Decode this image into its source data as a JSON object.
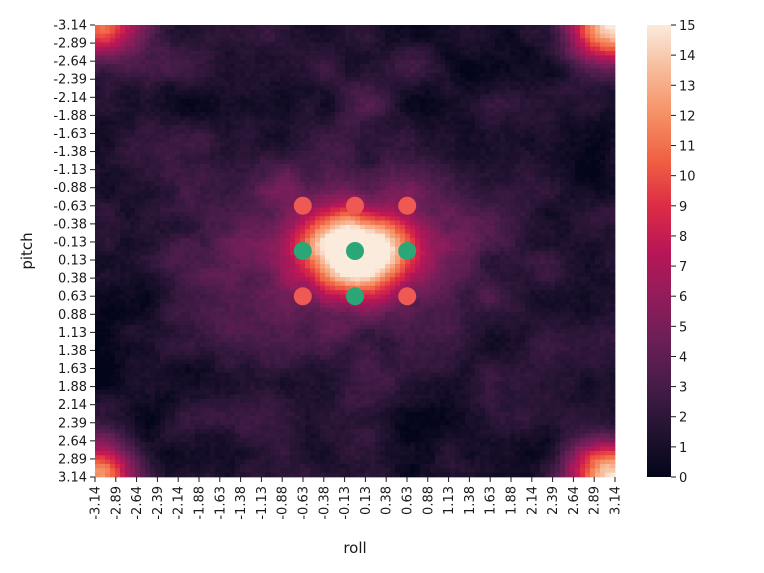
{
  "chart_data": {
    "type": "heatmap",
    "xlabel": "roll",
    "ylabel": "pitch",
    "x_ticks": [
      "-3.14",
      "-2.89",
      "-2.64",
      "-2.39",
      "-2.14",
      "-1.88",
      "-1.63",
      "-1.38",
      "-1.13",
      "-0.88",
      "-0.63",
      "-0.38",
      "-0.13",
      "0.13",
      "0.38",
      "0.63",
      "0.88",
      "1.13",
      "1.38",
      "1.63",
      "1.88",
      "2.14",
      "2.39",
      "2.64",
      "2.89",
      "3.14"
    ],
    "y_ticks": [
      "-3.14",
      "-2.89",
      "-2.64",
      "-2.39",
      "-2.14",
      "-1.88",
      "-1.63",
      "-1.38",
      "-1.13",
      "-0.88",
      "-0.63",
      "-0.38",
      "-0.13",
      "0.13",
      "0.38",
      "0.63",
      "0.88",
      "1.13",
      "1.38",
      "1.63",
      "1.88",
      "2.14",
      "2.39",
      "2.64",
      "2.89",
      "3.14"
    ],
    "x_range": [
      -3.14,
      3.14
    ],
    "y_range": [
      -3.14,
      3.14
    ],
    "y_direction": "downward",
    "colorbar": {
      "range": [
        0,
        15
      ],
      "ticks": [
        "0",
        "1",
        "2",
        "3",
        "4",
        "5",
        "6",
        "7",
        "8",
        "9",
        "10",
        "11",
        "12",
        "13",
        "14",
        "15"
      ],
      "colormap": "rocket"
    },
    "density_peaks": [
      {
        "roll": 0.0,
        "pitch": 0.0,
        "value": 15
      },
      {
        "roll": -3.14,
        "pitch": -3.14,
        "value": 11
      },
      {
        "roll": 3.14,
        "pitch": -3.14,
        "value": 13
      },
      {
        "roll": -3.14,
        "pitch": 3.14,
        "value": 11
      },
      {
        "roll": 3.14,
        "pitch": 3.14,
        "value": 13
      }
    ],
    "markers": [
      {
        "roll": -0.63,
        "pitch": -0.63,
        "color": "#ee5a53"
      },
      {
        "roll": 0.0,
        "pitch": -0.63,
        "color": "#ee5a53"
      },
      {
        "roll": 0.63,
        "pitch": -0.63,
        "color": "#ee5a53"
      },
      {
        "roll": -0.63,
        "pitch": 0.0,
        "color": "#2ba677"
      },
      {
        "roll": 0.0,
        "pitch": 0.0,
        "color": "#2ba677"
      },
      {
        "roll": 0.63,
        "pitch": 0.0,
        "color": "#2ba677"
      },
      {
        "roll": -0.63,
        "pitch": 0.63,
        "color": "#ee5a53"
      },
      {
        "roll": 0.0,
        "pitch": 0.63,
        "color": "#2ba677"
      },
      {
        "roll": 0.63,
        "pitch": 0.63,
        "color": "#ee5a53"
      }
    ],
    "grid": false,
    "legend": "none"
  }
}
